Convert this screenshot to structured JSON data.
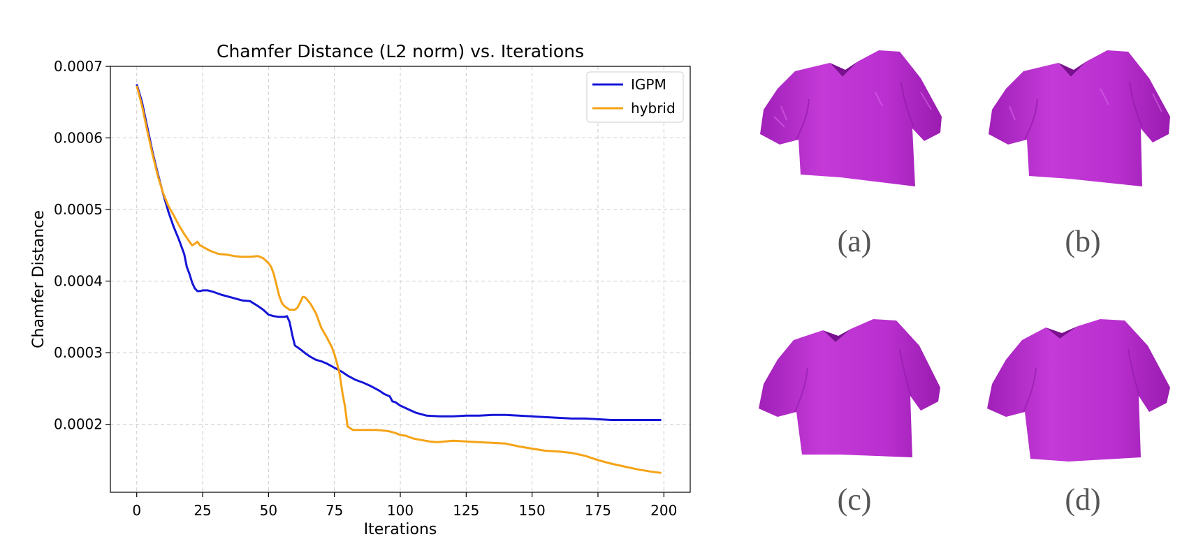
{
  "chart_data": {
    "type": "line",
    "title": "Chamfer Distance (L2 norm) vs. Iterations",
    "xlabel": "Iterations",
    "ylabel": "Chamfer Distance",
    "xlim": [
      -10,
      210
    ],
    "ylim": [
      0.000105,
      0.0007
    ],
    "xticks": [
      0,
      25,
      50,
      75,
      100,
      125,
      150,
      175,
      200
    ],
    "xtick_labels": [
      "0",
      "25",
      "50",
      "75",
      "100",
      "125",
      "150",
      "175",
      "200"
    ],
    "yticks": [
      0.0002,
      0.0003,
      0.0004,
      0.0005,
      0.0006,
      0.0007
    ],
    "ytick_labels": [
      "0.0002",
      "0.0003",
      "0.0004",
      "0.0005",
      "0.0006",
      "0.0007"
    ],
    "grid": true,
    "legend_position": "top-right",
    "series": [
      {
        "name": "IGPM",
        "color": "#1515d8",
        "x": [
          0,
          2,
          4,
          6,
          8,
          10,
          12,
          14,
          16,
          18,
          19,
          20,
          21,
          22,
          23,
          24,
          25,
          27,
          29,
          32,
          35,
          38,
          40,
          43,
          46,
          48,
          50,
          52,
          54,
          56,
          57,
          58,
          59,
          60,
          62,
          64,
          66,
          68,
          70,
          72,
          74,
          76,
          78,
          80,
          83,
          86,
          89,
          92,
          94,
          96,
          97,
          98,
          100,
          103,
          106,
          110,
          115,
          120,
          125,
          130,
          135,
          140,
          145,
          150,
          155,
          160,
          165,
          170,
          175,
          180,
          185,
          190,
          195,
          199
        ],
        "y": [
          0.000675,
          0.00065,
          0.000615,
          0.00058,
          0.00055,
          0.000522,
          0.000497,
          0.000476,
          0.000458,
          0.000438,
          0.00042,
          0.00041,
          0.000398,
          0.00039,
          0.000386,
          0.000386,
          0.000387,
          0.000387,
          0.000385,
          0.000381,
          0.000378,
          0.000375,
          0.000373,
          0.000372,
          0.000365,
          0.00036,
          0.000353,
          0.000351,
          0.00035,
          0.00035,
          0.000351,
          0.000343,
          0.000325,
          0.00031,
          0.000305,
          0.000299,
          0.000294,
          0.00029,
          0.000288,
          0.000285,
          0.000281,
          0.000277,
          0.000273,
          0.000268,
          0.000262,
          0.000258,
          0.000253,
          0.000247,
          0.000242,
          0.000239,
          0.000232,
          0.000231,
          0.000226,
          0.000221,
          0.000216,
          0.000212,
          0.000211,
          0.000211,
          0.000212,
          0.000212,
          0.000213,
          0.000213,
          0.000212,
          0.000211,
          0.00021,
          0.000209,
          0.000208,
          0.000208,
          0.000207,
          0.000206,
          0.000206,
          0.000206,
          0.000206,
          0.000206
        ]
      },
      {
        "name": "hybrid",
        "color": "#f5a316",
        "x": [
          0,
          2,
          4,
          6,
          8,
          10,
          12,
          14,
          16,
          18,
          20,
          21,
          22,
          23,
          24,
          26,
          28,
          31,
          34,
          37,
          40,
          43,
          46,
          48,
          50,
          51,
          52,
          53,
          54,
          55,
          56,
          58,
          60,
          61,
          62,
          63,
          64,
          66,
          68,
          69,
          70,
          72,
          74,
          75,
          76,
          77,
          78,
          79,
          80,
          82,
          85,
          88,
          91,
          94,
          96,
          98,
          100,
          102,
          105,
          108,
          111,
          114,
          117,
          120,
          125,
          130,
          135,
          140,
          145,
          150,
          155,
          160,
          165,
          170,
          175,
          180,
          185,
          190,
          195,
          199
        ],
        "y": [
          0.000673,
          0.000645,
          0.00061,
          0.000577,
          0.000547,
          0.000523,
          0.000505,
          0.000492,
          0.000478,
          0.000466,
          0.000455,
          0.00045,
          0.000452,
          0.000455,
          0.00045,
          0.000446,
          0.000442,
          0.000438,
          0.000437,
          0.000435,
          0.000434,
          0.000434,
          0.000435,
          0.000432,
          0.000425,
          0.00042,
          0.00041,
          0.000395,
          0.00038,
          0.00037,
          0.000365,
          0.00036,
          0.00036,
          0.000363,
          0.00037,
          0.000378,
          0.000377,
          0.000368,
          0.000355,
          0.000345,
          0.000335,
          0.000322,
          0.000308,
          0.000298,
          0.000285,
          0.00027,
          0.000245,
          0.000225,
          0.000197,
          0.000192,
          0.000192,
          0.000192,
          0.000192,
          0.000191,
          0.00019,
          0.000188,
          0.000185,
          0.000184,
          0.00018,
          0.000178,
          0.000176,
          0.000175,
          0.000176,
          0.000177,
          0.000176,
          0.000175,
          0.000174,
          0.000173,
          0.000169,
          0.000166,
          0.000163,
          0.000162,
          0.00016,
          0.000156,
          0.00015,
          0.000145,
          0.000141,
          0.000137,
          0.000134,
          0.000132
        ]
      }
    ]
  },
  "figure": {
    "shirt_color": "#c030d0",
    "panels": [
      {
        "id": "a",
        "caption": "(a)"
      },
      {
        "id": "b",
        "caption": "(b)"
      },
      {
        "id": "c",
        "caption": "(c)"
      },
      {
        "id": "d",
        "caption": "(d)"
      }
    ]
  }
}
